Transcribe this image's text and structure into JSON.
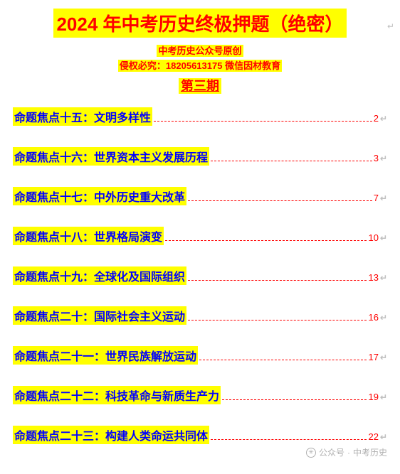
{
  "title": "2024 年中考历史终极押题（绝密）",
  "subtitle_line1": "中考历史公众号原创",
  "subtitle_line2": "侵权必究：18205613175 微信因材教育",
  "issue": "第三期",
  "paragraph_mark": "↵",
  "toc": [
    {
      "label": "命题焦点十五：文明多样性",
      "page": "2"
    },
    {
      "label": "命题焦点十六：世界资本主义发展历程",
      "page": "3"
    },
    {
      "label": "命题焦点十七：中外历史重大改革",
      "page": "7"
    },
    {
      "label": "命题焦点十八：世界格局演变",
      "page": "10"
    },
    {
      "label": "命题焦点十九：全球化及国际组织",
      "page": "13"
    },
    {
      "label": "命题焦点二十：国际社会主义运动",
      "page": "16"
    },
    {
      "label": "命题焦点二十一：世界民族解放运动",
      "page": "17"
    },
    {
      "label": "命题焦点二十二：科技革命与新质生产力",
      "page": "19"
    },
    {
      "label": "命题焦点二十三：构建人类命运共同体",
      "page": "22"
    }
  ],
  "watermark_label": "公众号",
  "watermark_account": "中考历史",
  "colors": {
    "highlight_bg": "#ffff00",
    "title_text": "#ff0000",
    "toc_text": "#0000ff",
    "dots": "#ff0000",
    "page_num": "#ff0000",
    "para_mark": "#c0c0c0"
  }
}
